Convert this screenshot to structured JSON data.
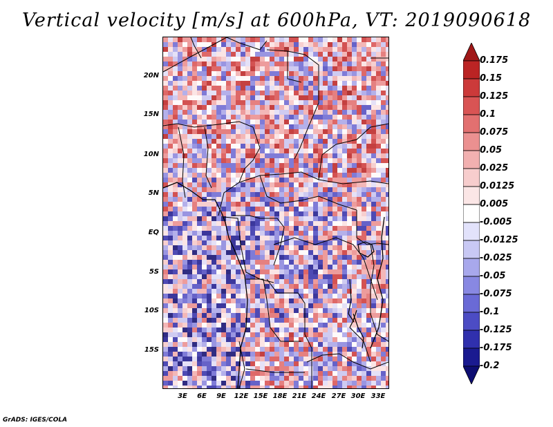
{
  "title": "Vertical velocity [m/s] at 600hPa, VT: 2019090618",
  "footer": "GrADS: IGES/COLA",
  "map": {
    "lat_labels": [
      "20N",
      "15N",
      "10N",
      "5N",
      "EQ",
      "5S",
      "10S",
      "15S"
    ],
    "lon_labels": [
      "3E",
      "6E",
      "9E",
      "12E",
      "15E",
      "18E",
      "21E",
      "24E",
      "27E",
      "30E",
      "33E"
    ]
  },
  "colorbar": {
    "labels": [
      "0.175",
      "0.15",
      "0.125",
      "0.1",
      "0.075",
      "0.05",
      "0.025",
      "0.0125",
      "0.005",
      "-0.005",
      "-0.0125",
      "-0.025",
      "-0.05",
      "-0.075",
      "-0.1",
      "-0.125",
      "-0.175",
      "-0.2"
    ],
    "colors": [
      "#a01818",
      "#bb2424",
      "#cc3a3a",
      "#d95454",
      "#e27070",
      "#eb9090",
      "#f2b0b0",
      "#f7cdcd",
      "#fbe6e6",
      "#ffffff",
      "#e2e2fb",
      "#c8c8f4",
      "#a8a8ec",
      "#8888e2",
      "#6a6ad6",
      "#4c4cc4",
      "#3030ad",
      "#1a1a90",
      "#0d0d72"
    ]
  },
  "colors": {
    "positive": "#d94040",
    "negative": "#4040c0",
    "borders": "#000000"
  }
}
